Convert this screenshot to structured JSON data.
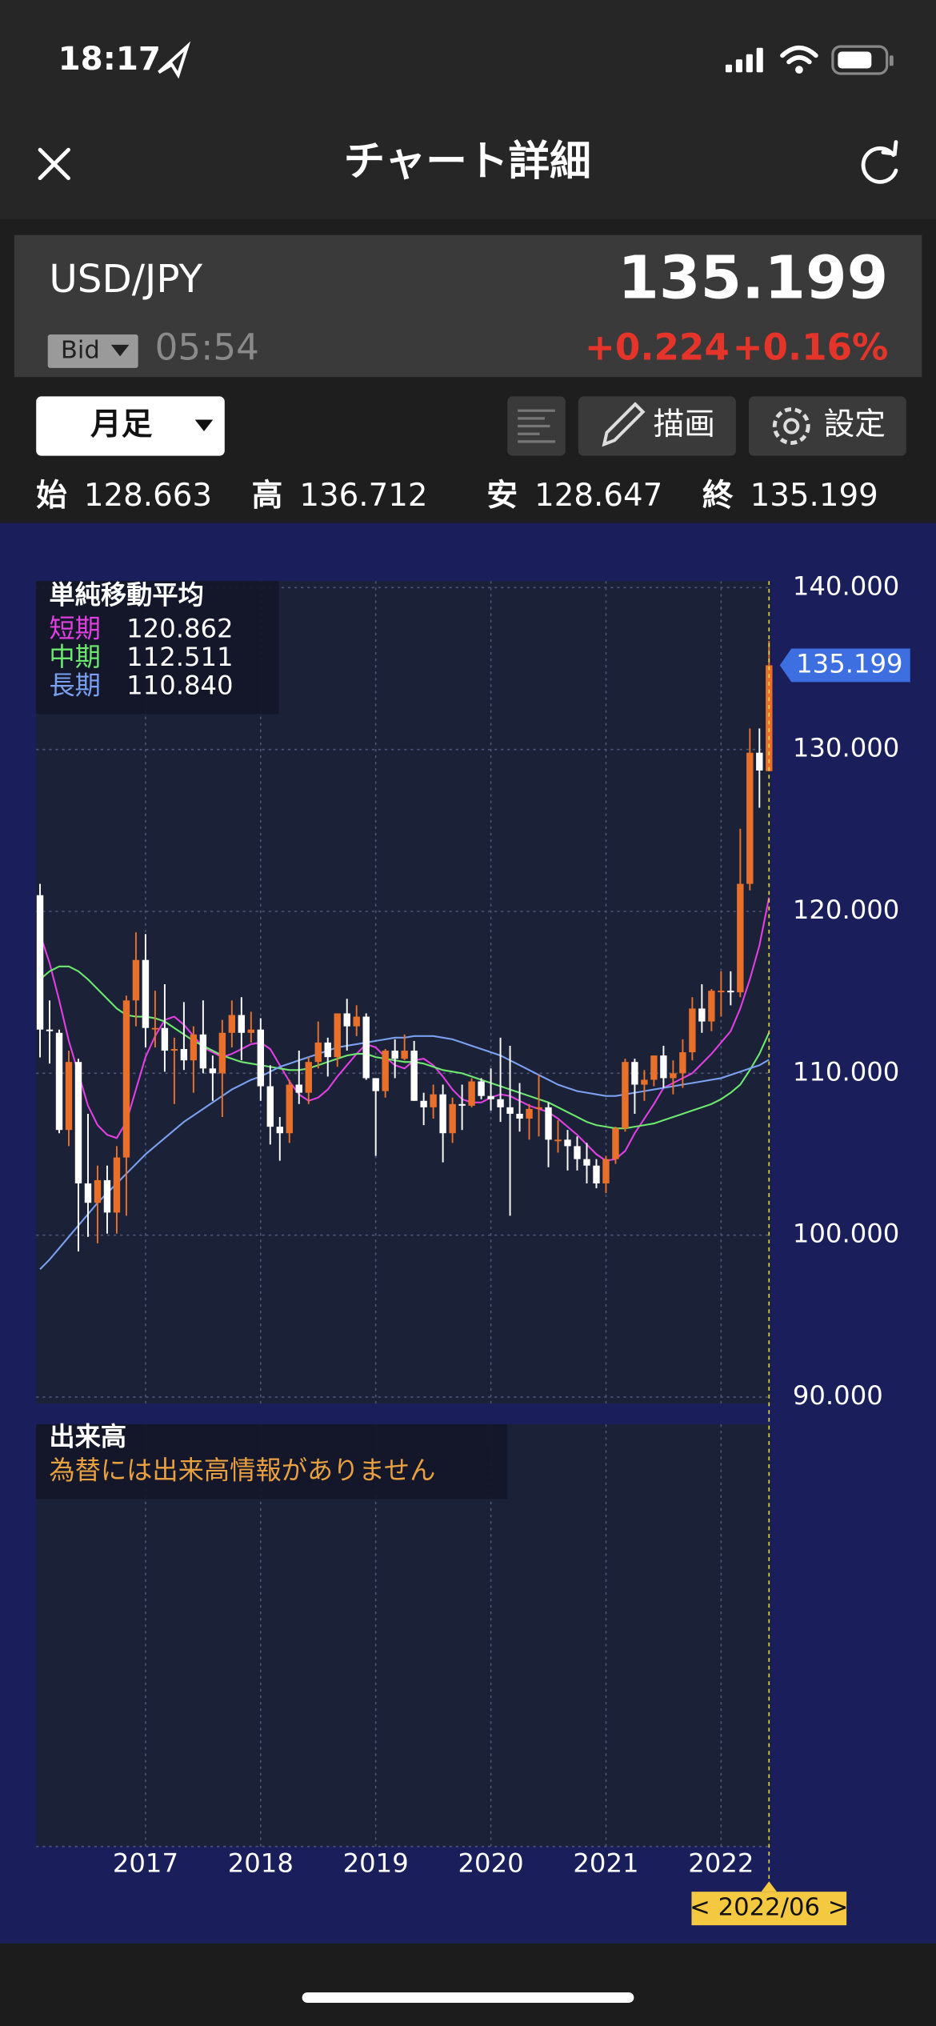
{
  "status_bar": {
    "time": "18:17"
  },
  "nav": {
    "title": "チャート詳細"
  },
  "quote": {
    "pair": "USD/JPY",
    "price_type": "Bid",
    "time": "05:54",
    "change": "+0.224",
    "change_percent": "+0.16%"
  },
  "toolbar": {
    "period": "月足",
    "draw": "描画",
    "settings": "設定"
  },
  "ohlc_labels": {
    "open": "始",
    "high": "高",
    "low": "安",
    "close": "終"
  },
  "chart_data": {
    "type": "candlestick",
    "categories": [
      null,
      null,
      null,
      null,
      null,
      null,
      null,
      null,
      null,
      null,
      null,
      "2017",
      null,
      null,
      null,
      null,
      null,
      null,
      null,
      null,
      null,
      null,
      null,
      "2018",
      null,
      null,
      null,
      null,
      null,
      null,
      null,
      null,
      null,
      null,
      null,
      "2019",
      null,
      null,
      null,
      null,
      null,
      null,
      null,
      null,
      null,
      null,
      null,
      "2020",
      null,
      null,
      null,
      null,
      null,
      null,
      null,
      null,
      null,
      null,
      null,
      "2021",
      null,
      null,
      null,
      null,
      null,
      null,
      null,
      null,
      null,
      null,
      null,
      "2022",
      null,
      null,
      null,
      null,
      null
    ],
    "open": [
      121.0,
      112.7,
      112.5,
      106.5,
      110.7,
      103.2,
      102.0,
      103.4,
      101.4,
      104.8,
      114.5,
      117.0,
      112.8,
      112.8,
      111.4,
      111.5,
      110.8,
      112.4,
      110.3,
      110.0,
      112.5,
      113.6,
      112.5,
      112.7,
      109.2,
      106.7,
      106.3,
      109.3,
      108.8,
      110.7,
      111.9,
      111.0,
      113.7,
      112.9,
      113.5,
      109.7,
      108.9,
      111.4,
      110.9,
      111.4,
      108.3,
      107.9,
      108.7,
      106.3,
      108.1,
      108.0,
      109.5,
      108.6,
      108.4,
      107.9,
      107.5,
      107.2,
      107.8,
      107.9,
      105.9,
      105.9,
      105.5,
      104.7,
      104.3,
      103.2,
      104.7,
      106.6,
      110.7,
      109.3,
      109.6,
      111.1,
      109.7,
      110.0,
      111.3,
      114.0,
      113.2,
      115.1,
      115.1,
      115.0,
      121.7,
      129.8,
      128.663
    ],
    "high": [
      121.7,
      114.5,
      112.7,
      111.4,
      110.9,
      107.5,
      104.3,
      104.3,
      105.5,
      114.8,
      118.7,
      118.6,
      115.1,
      115.5,
      112.2,
      114.4,
      112.9,
      114.5,
      111.1,
      113.3,
      114.5,
      114.7,
      113.8,
      113.4,
      110.5,
      107.3,
      109.6,
      111.4,
      111.0,
      113.2,
      112.2,
      113.7,
      114.6,
      114.2,
      113.7,
      109.7,
      111.5,
      112.1,
      112.4,
      112.0,
      108.8,
      109.3,
      109.3,
      108.5,
      109.3,
      109.7,
      109.7,
      110.3,
      112.2,
      111.7,
      109.4,
      108.1,
      109.9,
      108.2,
      107.1,
      106.5,
      106.1,
      105.7,
      104.7,
      104.9,
      106.7,
      110.9,
      110.9,
      110.2,
      111.1,
      111.7,
      110.8,
      112.1,
      114.7,
      115.5,
      115.2,
      116.3,
      116.3,
      125.1,
      131.3,
      131.3,
      136.712
    ],
    "low": [
      110.98,
      110.6,
      106.3,
      105.5,
      99.0,
      99.9,
      99.5,
      100.1,
      100.1,
      101.2,
      112.9,
      111.6,
      111.6,
      110.1,
      108.1,
      110.2,
      108.8,
      110.0,
      108.3,
      107.3,
      111.6,
      110.8,
      111.9,
      108.3,
      105.6,
      104.6,
      105.7,
      108.1,
      108.1,
      110.3,
      109.8,
      110.4,
      111.4,
      112.3,
      109.6,
      104.9,
      108.5,
      109.7,
      110.8,
      108.3,
      106.8,
      107.2,
      104.5,
      105.7,
      106.5,
      107.9,
      108.4,
      107.7,
      107.0,
      101.2,
      106.4,
      105.9,
      106.1,
      104.2,
      105.1,
      104.0,
      104.0,
      103.2,
      102.9,
      102.6,
      104.4,
      106.4,
      107.5,
      108.3,
      109.2,
      109.1,
      108.7,
      109.1,
      110.8,
      112.5,
      112.6,
      113.5,
      114.2,
      114.7,
      121.3,
      126.4,
      128.647
    ],
    "close": [
      112.7,
      112.6,
      106.5,
      110.7,
      103.2,
      102.0,
      103.4,
      101.4,
      104.8,
      114.5,
      117.0,
      112.8,
      112.8,
      111.4,
      111.5,
      110.8,
      112.4,
      110.3,
      110.0,
      112.5,
      113.6,
      112.5,
      112.7,
      109.2,
      106.7,
      106.3,
      109.3,
      108.8,
      110.7,
      111.9,
      111.0,
      113.7,
      112.9,
      113.5,
      109.7,
      108.9,
      111.4,
      110.9,
      111.4,
      108.3,
      107.9,
      108.7,
      106.3,
      108.1,
      108.0,
      109.5,
      108.6,
      108.4,
      107.9,
      107.5,
      107.2,
      107.8,
      107.9,
      105.9,
      105.9,
      105.5,
      104.7,
      104.3,
      103.2,
      104.7,
      106.6,
      110.7,
      109.3,
      109.6,
      111.1,
      109.7,
      110.0,
      111.3,
      114.0,
      113.2,
      115.1,
      115.1,
      115.0,
      121.7,
      129.8,
      128.7,
      135.199
    ],
    "up_color": "#e8702a",
    "down_color": "#ffffff",
    "ylim": [
      89.6,
      140.4
    ],
    "yticks": [
      {
        "value": 140,
        "label": "140.000"
      },
      {
        "value": 130,
        "label": "130.000"
      },
      {
        "value": 120,
        "label": "120.000"
      },
      {
        "value": 110,
        "label": "110.000"
      },
      {
        "value": 100,
        "label": "100.000"
      },
      {
        "value": 90,
        "label": "90.000"
      }
    ],
    "grid": true,
    "cursor_label": "< 2022/06 >",
    "moving_average": {
      "title": "単純移動平均",
      "series": [
        {
          "name": "短期",
          "color": "#e040e0",
          "values": [
            118.6,
            116.8,
            114.5,
            112.0,
            110.0,
            108.0,
            106.8,
            106.2,
            106.0,
            107.0,
            109.0,
            111.0,
            112.3,
            113.3,
            113.5,
            113.0,
            112.3,
            111.6,
            111.3,
            111.0,
            111.2,
            111.5,
            111.8,
            111.9,
            111.5,
            110.5,
            109.5,
            108.7,
            108.3,
            108.5,
            109.0,
            109.8,
            110.5,
            111.2,
            111.8,
            111.6,
            111.0,
            110.5,
            110.3,
            110.8,
            110.9,
            110.5,
            109.8,
            109.0,
            108.4,
            108.2,
            108.2,
            108.5,
            108.7,
            108.6,
            108.3,
            108.0,
            107.8,
            107.6,
            107.2,
            106.7,
            106.2,
            105.6,
            105.0,
            104.6,
            104.7,
            105.2,
            106.3,
            107.2,
            108.1,
            109.1,
            109.4,
            109.7,
            110.0,
            110.6,
            111.2,
            111.9,
            112.6,
            114.0,
            115.8,
            117.9,
            120.862
          ],
          "value_labels": [
            null,
            null,
            null,
            null,
            null,
            null,
            null,
            null,
            null,
            null,
            null,
            null,
            null,
            null,
            null,
            null,
            null,
            null,
            null,
            null,
            null,
            null,
            null,
            null,
            null,
            null,
            null,
            null,
            null,
            null,
            null,
            null,
            null,
            null,
            null,
            null,
            null,
            null,
            null,
            null,
            null,
            null,
            null,
            null,
            null,
            null,
            null,
            null,
            null,
            null,
            null,
            null,
            null,
            null,
            null,
            null,
            null,
            null,
            null,
            null,
            null,
            null,
            null,
            null,
            null,
            null,
            null,
            null,
            null,
            null,
            null,
            null,
            null,
            null,
            null,
            null,
            "120.862"
          ]
        },
        {
          "name": "中期",
          "color": "#6ee86e",
          "values": [
            115.8,
            116.3,
            116.6,
            116.6,
            116.3,
            115.8,
            115.2,
            114.6,
            114.0,
            113.6,
            113.5,
            113.5,
            113.4,
            113.2,
            112.8,
            112.4,
            112.0,
            111.7,
            111.4,
            111.1,
            110.9,
            110.7,
            110.6,
            110.5,
            110.4,
            110.3,
            110.2,
            110.2,
            110.3,
            110.5,
            110.7,
            110.9,
            111.1,
            111.2,
            111.2,
            111.0,
            110.9,
            110.8,
            110.7,
            110.7,
            110.6,
            110.4,
            110.2,
            110.1,
            110.0,
            109.8,
            109.6,
            109.4,
            109.2,
            109.0,
            108.8,
            108.6,
            108.4,
            108.2,
            107.9,
            107.6,
            107.3,
            107.0,
            106.8,
            106.7,
            106.6,
            106.6,
            106.7,
            106.8,
            106.9,
            107.1,
            107.3,
            107.5,
            107.7,
            107.9,
            108.1,
            108.4,
            108.8,
            109.3,
            110.2,
            111.2,
            112.511
          ],
          "value_labels": [
            null,
            null,
            null,
            null,
            null,
            null,
            null,
            null,
            null,
            null,
            null,
            null,
            null,
            null,
            null,
            null,
            null,
            null,
            null,
            null,
            null,
            null,
            null,
            null,
            null,
            null,
            null,
            null,
            null,
            null,
            null,
            null,
            null,
            null,
            null,
            null,
            null,
            null,
            null,
            null,
            null,
            null,
            null,
            null,
            null,
            null,
            null,
            null,
            null,
            null,
            null,
            null,
            null,
            null,
            null,
            null,
            null,
            null,
            null,
            null,
            null,
            null,
            null,
            null,
            null,
            null,
            null,
            null,
            null,
            null,
            null,
            null,
            null,
            null,
            null,
            null,
            "112.511"
          ]
        },
        {
          "name": "長期",
          "color": "#7aa0f0",
          "values": [
            97.9,
            98.5,
            99.2,
            99.9,
            100.6,
            101.3,
            102.0,
            102.6,
            103.2,
            103.8,
            104.4,
            105.0,
            105.5,
            106.0,
            106.5,
            107.0,
            107.4,
            107.8,
            108.2,
            108.6,
            109.0,
            109.3,
            109.6,
            109.8,
            110.1,
            110.4,
            110.6,
            110.8,
            111.0,
            111.2,
            111.4,
            111.6,
            111.7,
            111.8,
            111.9,
            112.0,
            112.1,
            112.2,
            112.2,
            112.3,
            112.3,
            112.3,
            112.2,
            112.1,
            111.9,
            111.7,
            111.5,
            111.3,
            111.1,
            110.8,
            110.5,
            110.2,
            109.9,
            109.6,
            109.3,
            109.1,
            108.9,
            108.8,
            108.7,
            108.6,
            108.6,
            108.7,
            108.8,
            108.9,
            109.0,
            109.1,
            109.2,
            109.3,
            109.4,
            109.5,
            109.6,
            109.7,
            109.9,
            110.1,
            110.3,
            110.5,
            110.84
          ],
          "value_labels": [
            null,
            null,
            null,
            null,
            null,
            null,
            null,
            null,
            null,
            null,
            null,
            null,
            null,
            null,
            null,
            null,
            null,
            null,
            null,
            null,
            null,
            null,
            null,
            null,
            null,
            null,
            null,
            null,
            null,
            null,
            null,
            null,
            null,
            null,
            null,
            null,
            null,
            null,
            null,
            null,
            null,
            null,
            null,
            null,
            null,
            null,
            null,
            null,
            null,
            null,
            null,
            null,
            null,
            null,
            null,
            null,
            null,
            null,
            null,
            null,
            null,
            null,
            null,
            null,
            null,
            null,
            null,
            null,
            null,
            null,
            null,
            null,
            null,
            null,
            null,
            null,
            "110.840"
          ]
        }
      ]
    },
    "volume": {
      "title": "出来高",
      "note": "為替には出来高情報がありません"
    }
  }
}
